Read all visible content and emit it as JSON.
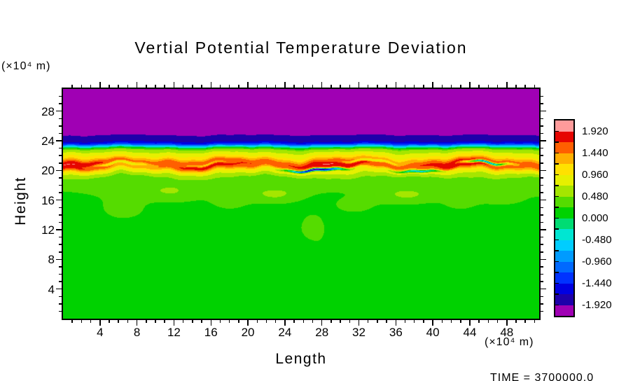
{
  "page": {
    "background": "#FFFFFF",
    "time_annotation": "TIME = 3700000.0"
  },
  "chart_data": {
    "type": "heatmap",
    "title": "Vertial Potential Temperature Deviation",
    "xlabel": "Length",
    "ylabel": "Height",
    "x_axis_unit": "(×10⁴ m)",
    "y_axis_unit": "(×10⁴ m)",
    "xlim": [
      0,
      51.5
    ],
    "ylim": [
      0,
      31
    ],
    "x_major_ticks": [
      4,
      8,
      12,
      16,
      20,
      24,
      28,
      32,
      36,
      40,
      44,
      48
    ],
    "y_major_ticks": [
      4,
      8,
      12,
      16,
      20,
      24,
      28
    ],
    "minor_tick_step": 1,
    "grid": false,
    "legend_position": "right-colorbar",
    "colorbar": {
      "tick_labels": [
        "1.920",
        "1.440",
        "0.960",
        "0.480",
        "0.000",
        "-0.480",
        "-0.960",
        "-1.440",
        "-1.920"
      ],
      "level_min": -1.92,
      "level_max": 1.92,
      "level_step": 0.24,
      "colors_bottom_to_top": [
        "#A000B4",
        "#1E00AA",
        "#0000E1",
        "#0032FF",
        "#0069FF",
        "#009BFF",
        "#00CDFF",
        "#00E6D2",
        "#00DC73",
        "#00D200",
        "#55DC00",
        "#A5E600",
        "#E6F000",
        "#FFE100",
        "#FFAF00",
        "#FF5F00",
        "#E60500",
        "#FF9B9B"
      ]
    },
    "field_model": {
      "description": "Stratified potential-temperature deviation: near-zero (green) below h≈17, weak positive wisps h≈12–19, strong wavy positive band (yellow/orange/red, peak ≈ +1.8) at h≈20–22 with thin embedded negative streaks, sharp drop to strong negative (blue, ≈ −1.9) at h≈23–25, and values below −1.92 (purple) above h≈25.",
      "vertical_profile": [
        [
          0,
          0.06
        ],
        [
          13,
          0.06
        ],
        [
          15,
          0.1
        ],
        [
          17,
          0.17
        ],
        [
          18.5,
          0.2
        ],
        [
          19.3,
          0.5
        ],
        [
          19.9,
          0.95
        ],
        [
          20.4,
          1.55
        ],
        [
          20.9,
          1.82
        ],
        [
          21.3,
          1.55
        ],
        [
          21.8,
          1.05
        ],
        [
          22.3,
          0.8
        ],
        [
          22.8,
          0.5
        ],
        [
          23.05,
          0.1
        ],
        [
          23.3,
          -0.6
        ],
        [
          23.55,
          -1.3
        ],
        [
          23.9,
          -1.7
        ],
        [
          24.3,
          -1.85
        ],
        [
          24.75,
          -1.91
        ],
        [
          25.05,
          -2.1
        ],
        [
          31,
          -2.2
        ]
      ],
      "wave": {
        "components": [
          [
            0.3,
            0.5,
            1.2
          ],
          [
            0.18,
            1.15,
            4.0
          ],
          [
            0.1,
            2.4,
            2.5
          ]
        ],
        "band_center": 20.8,
        "band_sigma2": 3.2,
        "upper_center": 24.55,
        "upper_sigma2": 1.5,
        "upper_amp": 0.25,
        "thickness_mod": 0.1,
        "thickness_k": 0.45,
        "thickness_phase": 0.8
      },
      "layer": {
        "amp": 0.16,
        "center": 17.9,
        "sigma2": 1.6,
        "wave_amp": 0.5,
        "wave_k": 0.4,
        "wave_phase": 2.0
      },
      "patches": [
        [
          6.5,
          14.8,
          0.28,
          1.8,
          1.2
        ],
        [
          12,
          16.8,
          0.25,
          2.2,
          0.9
        ],
        [
          18,
          15.8,
          0.22,
          1.6,
          1.0
        ],
        [
          23,
          16.5,
          0.25,
          2.0,
          0.8
        ],
        [
          27,
          12.3,
          0.3,
          1.2,
          1.5
        ],
        [
          31.5,
          15.2,
          0.22,
          1.8,
          0.9
        ],
        [
          37,
          16.4,
          0.26,
          2.4,
          0.8
        ],
        [
          43,
          15.5,
          0.2,
          1.5,
          0.8
        ],
        [
          47.5,
          16.2,
          0.24,
          1.8,
          0.7
        ],
        [
          9,
          8.5,
          0.18,
          0.9,
          2.2
        ],
        [
          28,
          8,
          0.15,
          0.8,
          1.8
        ]
      ],
      "streak_anomalies": [
        [
          27.5,
          20.15,
          -3.4,
          2.2,
          0.13
        ],
        [
          38.5,
          20.05,
          -1.7,
          1.8,
          0.12
        ],
        [
          45.8,
          20.9,
          -2.8,
          1.6,
          0.12
        ],
        [
          6,
          20.75,
          -0.9,
          2.3,
          0.16
        ],
        [
          15.5,
          20.95,
          -0.8,
          2.0,
          0.14
        ],
        [
          33,
          21.1,
          -0.9,
          2.2,
          0.15
        ]
      ]
    }
  }
}
